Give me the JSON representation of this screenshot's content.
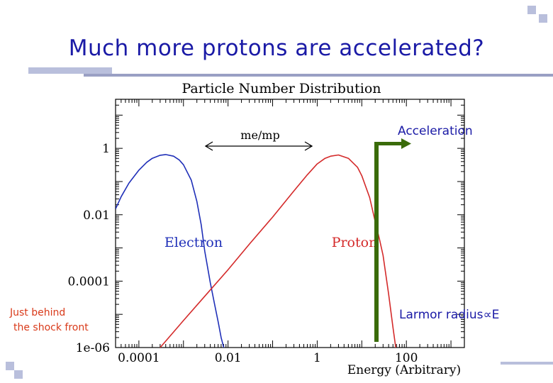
{
  "slide": {
    "title": "Much more protons are accelerated?",
    "note_left_line1": "Just behind",
    "note_left_line2": "the shock front",
    "note_left_color": "#d93a1a",
    "annotation_accel": "Acceleration",
    "annotation_larmor": "Larmor radius∝E",
    "accent_color": "#1a1aa6",
    "arrow_color": "#3a6b0a"
  },
  "chart_data": {
    "type": "line",
    "title": "Particle Number Distribution",
    "xlabel": "Energy (Arbitrary)",
    "ylabel": "",
    "xscale": "log",
    "yscale": "log",
    "xlim": [
      3e-05,
      2000
    ],
    "ylim": [
      1e-06,
      30
    ],
    "x_ticks": [
      {
        "v": 0.0001,
        "label": "0.0001"
      },
      {
        "v": 0.01,
        "label": "0.01"
      },
      {
        "v": 1,
        "label": "1"
      },
      {
        "v": 100,
        "label": "100"
      }
    ],
    "y_ticks": [
      {
        "v": 1,
        "label": "1"
      },
      {
        "v": 0.01,
        "label": "0.01"
      },
      {
        "v": 0.0001,
        "label": "0.0001"
      },
      {
        "v": 1e-06,
        "label": "1e-06"
      }
    ],
    "series": [
      {
        "name": "Electron",
        "color": "#1f2fb8",
        "x": [
          3e-05,
          4e-05,
          6e-05,
          0.0001,
          0.00015,
          0.0002,
          0.0003,
          0.0004,
          0.0006,
          0.0008,
          0.001,
          0.0015,
          0.002,
          0.0025,
          0.003,
          0.004,
          0.005,
          0.006,
          0.007,
          0.008
        ],
        "y": [
          0.015,
          0.035,
          0.09,
          0.22,
          0.38,
          0.5,
          0.62,
          0.65,
          0.58,
          0.45,
          0.32,
          0.11,
          0.025,
          0.005,
          0.0008,
          9e-05,
          2e-05,
          6e-06,
          2e-06,
          1e-06
        ]
      },
      {
        "name": "Proton",
        "color": "#d42a2a",
        "x": [
          0.0003,
          0.001,
          0.003,
          0.01,
          0.03,
          0.1,
          0.3,
          0.6,
          1,
          1.5,
          2,
          3,
          5,
          8,
          10,
          15,
          20,
          25,
          30,
          40,
          50,
          60
        ],
        "y": [
          1e-06,
          6.5e-06,
          3.5e-05,
          0.00022,
          0.0013,
          0.0085,
          0.052,
          0.16,
          0.34,
          0.5,
          0.58,
          0.63,
          0.5,
          0.27,
          0.15,
          0.033,
          0.0062,
          0.0018,
          0.0006,
          4e-05,
          4e-06,
          7e-07
        ]
      }
    ],
    "annotations": [
      {
        "text": "me/mp"
      }
    ],
    "legend": "inline labels",
    "grid": false
  }
}
